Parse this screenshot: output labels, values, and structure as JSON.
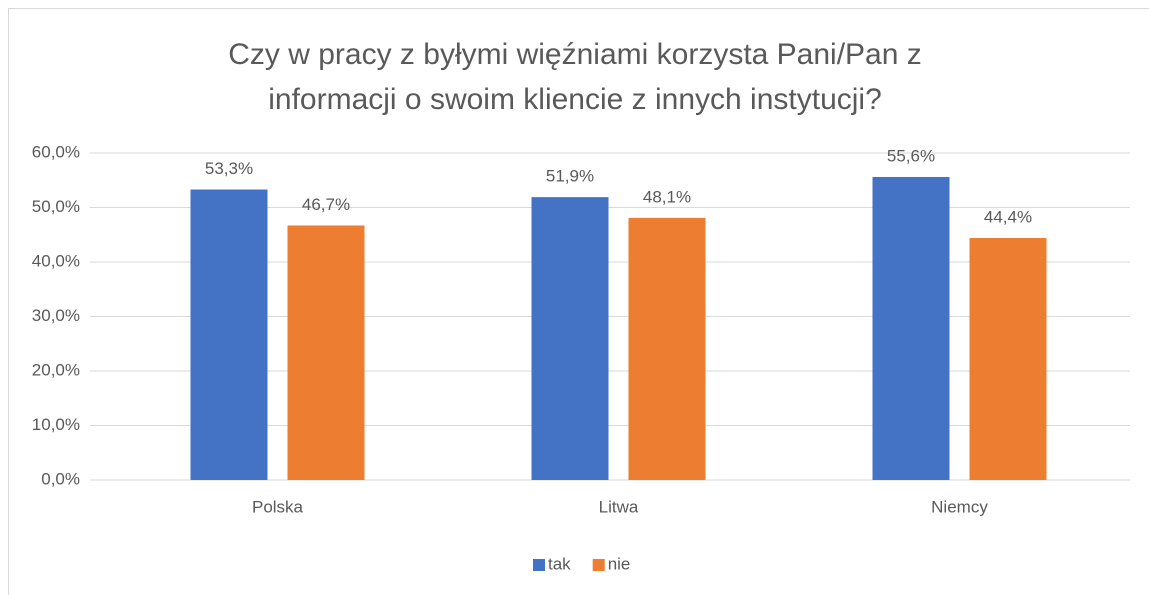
{
  "chart_data": {
    "type": "bar",
    "title": "Czy w pracy z byłymi więźniami korzysta Pani/Pan z informacji o swoim kliencie z innych instytucji?",
    "categories": [
      "Polska",
      "Litwa",
      "Niemcy"
    ],
    "series": [
      {
        "name": "tak",
        "color": "#4472c4",
        "values": [
          53.3,
          51.9,
          55.6
        ],
        "value_labels": [
          "53,3%",
          "51,9%",
          "55,6%"
        ]
      },
      {
        "name": "nie",
        "color": "#ed7d31",
        "values": [
          46.7,
          48.1,
          44.4
        ],
        "value_labels": [
          "46,7%",
          "48,1%",
          "44,4%"
        ]
      }
    ],
    "ylim": [
      0,
      60
    ],
    "yticks": [
      {
        "value": 0,
        "label": "0,0%"
      },
      {
        "value": 10,
        "label": "10,0%"
      },
      {
        "value": 20,
        "label": "20,0%"
      },
      {
        "value": 30,
        "label": "30,0%"
      },
      {
        "value": 40,
        "label": "40,0%"
      },
      {
        "value": 50,
        "label": "50,0%"
      },
      {
        "value": 60,
        "label": "60,0%"
      }
    ],
    "grid": true,
    "legend": "bottom"
  }
}
